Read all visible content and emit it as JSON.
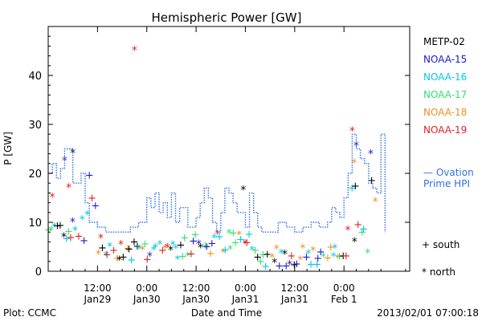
{
  "chart_data": {
    "type": "scatter",
    "title": "Hemispheric Power [GW]",
    "xlabel": "Date and Time",
    "ylabel": "P [GW]",
    "ylim": [
      0,
      50
    ],
    "yticks": [
      0,
      10,
      20,
      30,
      40
    ],
    "xlim_hours": [
      0,
      88
    ],
    "xticks": [
      {
        "hour": 12,
        "time": "12:00",
        "date": "Jan29"
      },
      {
        "hour": 24,
        "time": "0:00",
        "date": "Jan30"
      },
      {
        "hour": 36,
        "time": "12:00",
        "date": "Jan30"
      },
      {
        "hour": 48,
        "time": "0:00",
        "date": "Jan31"
      },
      {
        "hour": 60,
        "time": "12:00",
        "date": "Jan31"
      },
      {
        "hour": 72,
        "time": "0:00",
        "date": "Feb 1"
      }
    ],
    "legend_placement": "right",
    "series": [
      {
        "name": "METP-02",
        "color": "#000000"
      },
      {
        "name": "NOAA-15",
        "color": "#1a1acc"
      },
      {
        "name": "NOAA-16",
        "color": "#00c8e6"
      },
      {
        "name": "NOAA-17",
        "color": "#30e070"
      },
      {
        "name": "NOAA-18",
        "color": "#f09020"
      },
      {
        "name": "NOAA-19",
        "color": "#e02020"
      }
    ],
    "ovation": {
      "label_line1": "— Ovation",
      "label_line2": "Prime HPI",
      "color": "#3070e0",
      "x": [
        0,
        1,
        2,
        3,
        4,
        6,
        8,
        9,
        10,
        12,
        14,
        16,
        18,
        20,
        22,
        24,
        25,
        26,
        27,
        28,
        29,
        30,
        31,
        32,
        34,
        36,
        37,
        38,
        39,
        40,
        41,
        42,
        43,
        44,
        45,
        46,
        48,
        49,
        50,
        51,
        52,
        54,
        56,
        58,
        60,
        62,
        64,
        66,
        68,
        69,
        70,
        71,
        72,
        73,
        74,
        75,
        76,
        77,
        78,
        79,
        80,
        81,
        82
      ],
      "y": [
        20,
        22,
        19,
        21,
        25,
        18,
        20,
        14,
        10,
        9,
        8,
        8,
        8,
        9,
        10,
        15,
        13,
        16,
        12,
        14,
        11,
        16,
        10,
        13,
        9,
        11,
        14,
        17,
        15,
        10,
        8,
        12,
        17,
        16,
        14,
        12,
        9,
        16,
        12,
        9,
        8,
        8,
        10,
        9,
        8,
        9,
        10,
        9,
        10,
        13,
        12,
        11,
        15,
        20,
        28,
        25,
        23,
        22,
        18,
        17,
        16,
        28,
        8
      ]
    },
    "marker_legend": {
      "south": "+ south",
      "north": "* north"
    }
  },
  "footer": {
    "plot_credit": "Plot: CCMC",
    "timestamp": "2013/02/01 07:00:18"
  }
}
